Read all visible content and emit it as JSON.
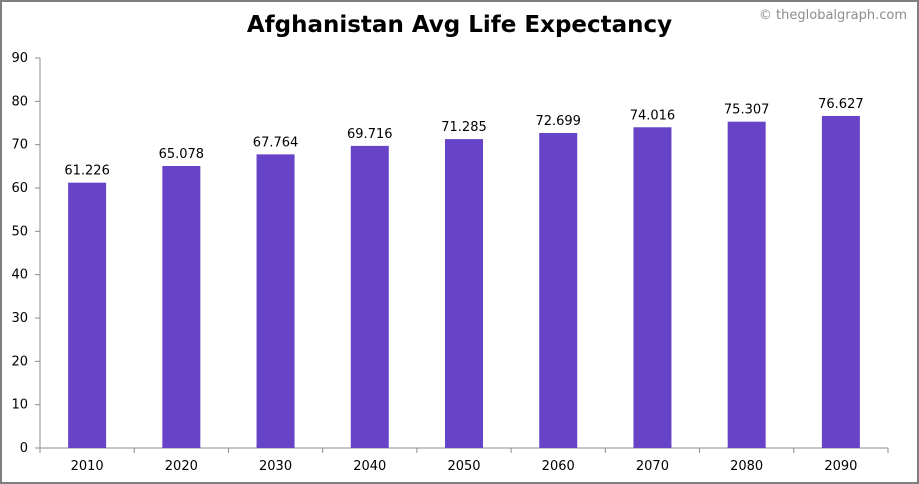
{
  "page": {
    "title": "Afghanistan Avg Life Expectancy",
    "watermark": "© theglobalgraph.com"
  },
  "colors": {
    "bar": "#6744c7",
    "axis": "#8c8c8c",
    "frame": "#7f7f7f"
  },
  "chart_data": {
    "type": "bar",
    "title": "Afghanistan Avg Life Expectancy",
    "xlabel": "",
    "ylabel": "",
    "categories": [
      "2010",
      "2020",
      "2030",
      "2040",
      "2050",
      "2060",
      "2070",
      "2080",
      "2090"
    ],
    "values": [
      61.226,
      65.078,
      67.764,
      69.716,
      71.285,
      72.699,
      74.016,
      75.307,
      76.627
    ],
    "data_labels": [
      "61.226",
      "65.078",
      "67.764",
      "69.716",
      "71.285",
      "72.699",
      "74.016",
      "75.307",
      "76.627"
    ],
    "ylim": [
      0,
      90
    ],
    "yticks": [
      "0",
      "10",
      "20",
      "30",
      "40",
      "50",
      "60",
      "70",
      "80",
      "90"
    ],
    "grid": false,
    "legend": "none"
  }
}
